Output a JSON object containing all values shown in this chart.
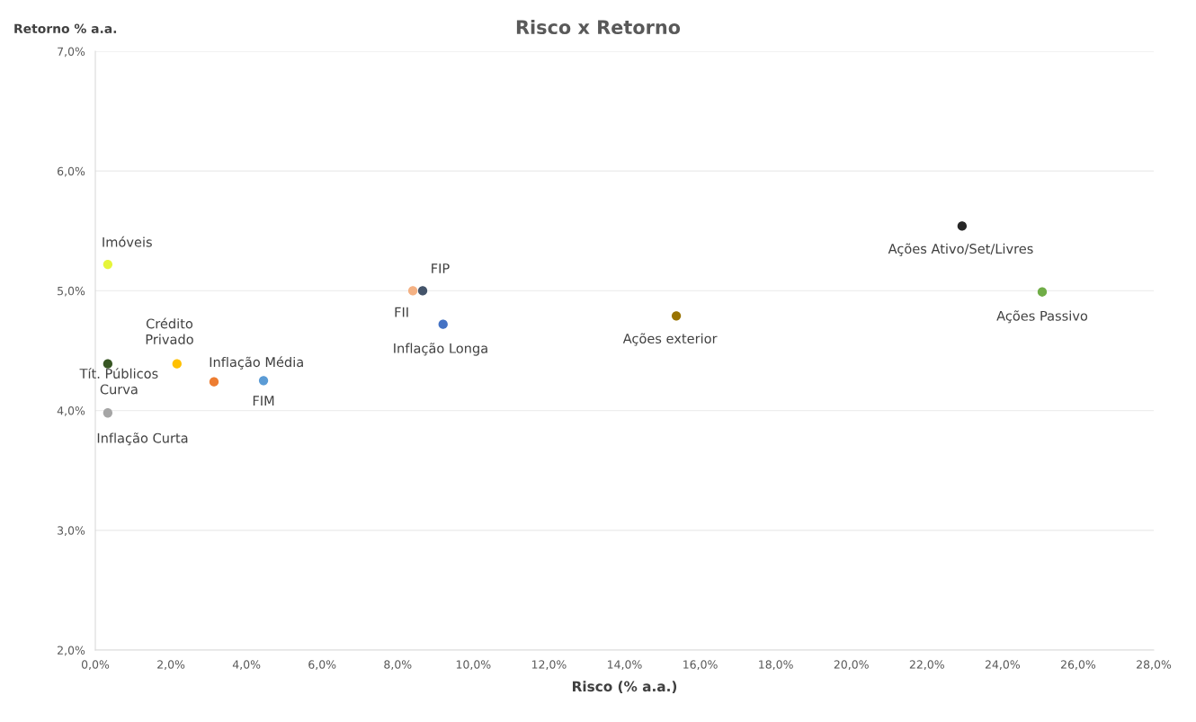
{
  "chart_data": {
    "type": "scatter",
    "title": "Risco x Retorno",
    "xlabel": "Risco (% a.a.)",
    "ylabel": "Retorno % a.a.",
    "xlim": [
      0,
      28
    ],
    "ylim": [
      2,
      7
    ],
    "xticks": [
      {
        "value": 0,
        "label": "0,0%"
      },
      {
        "value": 2,
        "label": "2,0%"
      },
      {
        "value": 4,
        "label": "4,0%"
      },
      {
        "value": 6,
        "label": "6,0%"
      },
      {
        "value": 8,
        "label": "8,0%"
      },
      {
        "value": 10,
        "label": "10,0%"
      },
      {
        "value": 12,
        "label": "12,0%"
      },
      {
        "value": 14,
        "label": "14,0%"
      },
      {
        "value": 16,
        "label": "16,0%"
      },
      {
        "value": 18,
        "label": "18,0%"
      },
      {
        "value": 20,
        "label": "20,0%"
      },
      {
        "value": 22,
        "label": "22,0%"
      },
      {
        "value": 24,
        "label": "24,0%"
      },
      {
        "value": 26,
        "label": "26,0%"
      },
      {
        "value": 28,
        "label": "28,0%"
      }
    ],
    "yticks": [
      {
        "value": 2,
        "label": "2,0%"
      },
      {
        "value": 3,
        "label": "3,0%"
      },
      {
        "value": 4,
        "label": "4,0%"
      },
      {
        "value": 5,
        "label": "5,0%"
      },
      {
        "value": 6,
        "label": "6,0%"
      },
      {
        "value": 7,
        "label": "7,0%"
      }
    ],
    "grid": "y",
    "legend": false,
    "marker": "circle",
    "series": [
      {
        "name": "Imóveis",
        "color": "#e6f53a",
        "x": [
          0.33
        ],
        "values": [
          5.22
        ]
      },
      {
        "name": "Tít. Públicos\nCurva",
        "color": "#375623",
        "x": [
          0.33
        ],
        "values": [
          4.39
        ]
      },
      {
        "name": "Inflação Curta",
        "color": "#a5a5a5",
        "x": [
          0.33
        ],
        "values": [
          3.98
        ]
      },
      {
        "name": "Crédito\nPrivado",
        "color": "#ffc000",
        "x": [
          2.16
        ],
        "values": [
          4.39
        ]
      },
      {
        "name": "Inflação Média",
        "color": "#ed7d31",
        "x": [
          3.14
        ],
        "values": [
          4.24
        ]
      },
      {
        "name": "FIM",
        "color": "#5b9bd5",
        "x": [
          4.45
        ],
        "values": [
          4.25
        ]
      },
      {
        "name": "FII",
        "color": "#f4b183",
        "x": [
          8.4
        ],
        "values": [
          5.0
        ]
      },
      {
        "name": "FIP",
        "color": "#44546a",
        "x": [
          8.66
        ],
        "values": [
          5.0
        ]
      },
      {
        "name": "Inflação Longa",
        "color": "#4472c4",
        "x": [
          9.2
        ],
        "values": [
          4.72
        ]
      },
      {
        "name": "Ações exterior",
        "color": "#997300",
        "x": [
          15.37
        ],
        "values": [
          4.79
        ]
      },
      {
        "name": "Ações Ativo/Set/Livres",
        "color": "#262626",
        "x": [
          22.93
        ],
        "values": [
          5.54
        ]
      },
      {
        "name": "Ações Passivo",
        "color": "#70ad47",
        "x": [
          25.05
        ],
        "values": [
          4.99
        ]
      }
    ]
  }
}
